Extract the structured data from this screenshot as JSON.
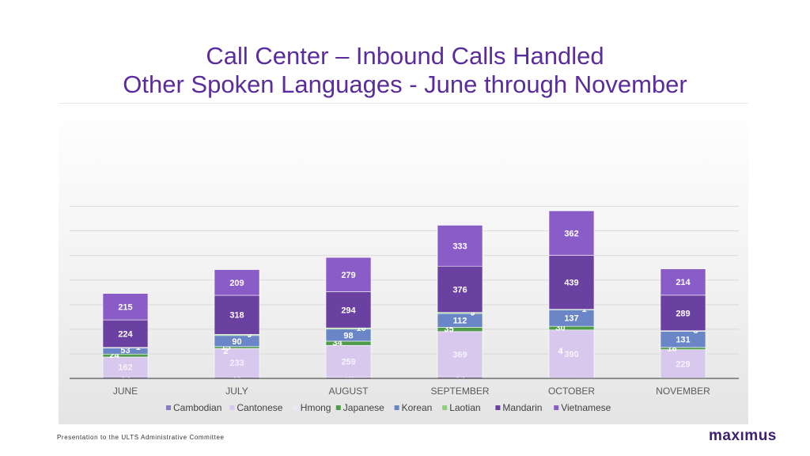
{
  "title_line1": "Call Center – Inbound Calls Handled",
  "title_line2": "Other Spoken Languages - June through November",
  "footer": "Presentation to the ULTS Administrative Committee",
  "brand": "maxımus",
  "colors": {
    "title": "#5b2d9c",
    "Cambodian": "#8e7cc3",
    "Cantonese": "#d9c8ee",
    "Hmong": "#ece6f6",
    "Japanese": "#4f9b4a",
    "Korean": "#6b86c6",
    "Laotian": "#8fcf7a",
    "Mandarin": "#6a40a0",
    "Vietnamese": "#8a5cc8"
  },
  "chart_data": {
    "type": "bar",
    "stacked": true,
    "categories": [
      "JUNE",
      "JULY",
      "AUGUST",
      "SEPTEMBER",
      "OCTOBER",
      "NOVEMBER"
    ],
    "series": [
      {
        "name": "Cambodian",
        "values": [
          12,
          11,
          10,
          12,
          4,
          5
        ]
      },
      {
        "name": "Cantonese",
        "values": [
          162,
          233,
          259,
          369,
          390,
          229
        ]
      },
      {
        "name": "Hmong",
        "values": [
          0,
          0,
          0,
          0,
          0,
          0
        ]
      },
      {
        "name": "Japanese",
        "values": [
          24,
          15,
          34,
          35,
          30,
          18
        ]
      },
      {
        "name": "Korean",
        "values": [
          53,
          90,
          98,
          112,
          137,
          131
        ]
      },
      {
        "name": "Laotian",
        "values": [
          1,
          9,
          10,
          9,
          1,
          5
        ]
      },
      {
        "name": "Mandarin",
        "values": [
          224,
          318,
          294,
          376,
          439,
          289
        ]
      },
      {
        "name": "Vietnamese",
        "values": [
          215,
          209,
          279,
          333,
          362,
          214
        ]
      }
    ],
    "extra_labels": [
      {
        "category": "JULY",
        "text": "2"
      },
      {
        "category": "OCTOBER",
        "text": "4"
      }
    ],
    "ylim": [
      0,
      1400
    ],
    "grid": true,
    "legend": "bottom"
  }
}
